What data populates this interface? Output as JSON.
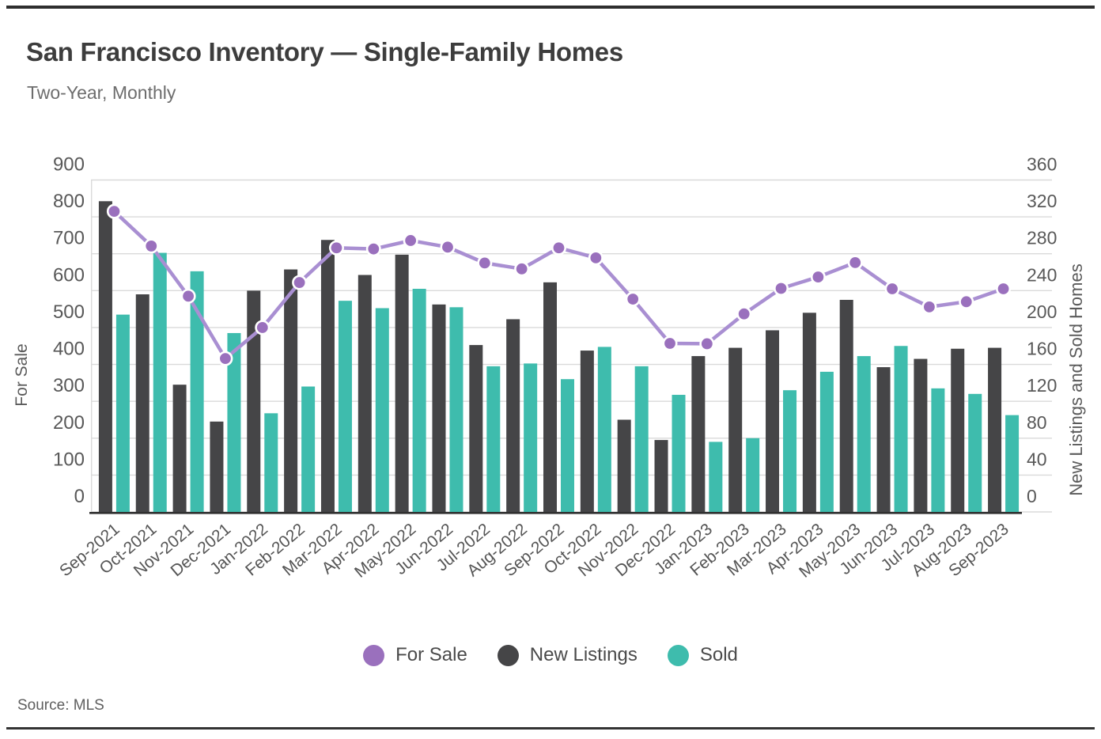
{
  "page": {
    "source": "Source: MLS"
  },
  "chart_data": {
    "type": "combo_bar_line",
    "title": "San Francisco Inventory — Single-Family Homes",
    "subtitle": "Two-Year, Monthly",
    "grid": true,
    "legend_position": "bottom",
    "categories": [
      "Sep-2021",
      "Oct-2021",
      "Nov-2021",
      "Dec-2021",
      "Jan-2022",
      "Feb-2022",
      "Mar-2022",
      "Apr-2022",
      "May-2022",
      "Jun-2022",
      "Jul-2022",
      "Aug-2022",
      "Sep-2022",
      "Oct-2022",
      "Nov-2022",
      "Dec-2022",
      "Jan-2023",
      "Feb-2023",
      "Mar-2023",
      "Apr-2023",
      "May-2023",
      "Jun-2023",
      "Jul-2023",
      "Aug-2023",
      "Sep-2023"
    ],
    "series": [
      {
        "name": "For Sale",
        "chart": "line",
        "axis": "left",
        "color": "#9a70bd",
        "line_color": "#a98fd2",
        "values": [
          815,
          721,
          585,
          416,
          500,
          622,
          716,
          713,
          736,
          718,
          675,
          659,
          716,
          689,
          577,
          457,
          456,
          537,
          606,
          637,
          676,
          605,
          556,
          570,
          605
        ]
      },
      {
        "name": "New Listings",
        "chart": "bar",
        "axis": "right",
        "color": "#454547",
        "values": [
          337,
          236,
          138,
          98,
          240,
          263,
          295,
          257,
          279,
          225,
          181,
          209,
          249,
          175,
          100,
          78,
          169,
          178,
          197,
          216,
          230,
          157,
          166,
          177,
          178
        ]
      },
      {
        "name": "Sold",
        "chart": "bar",
        "axis": "right",
        "color": "#3ebcad",
        "values": [
          214,
          281,
          261,
          194,
          107,
          136,
          229,
          221,
          242,
          222,
          158,
          161,
          144,
          179,
          158,
          127,
          76,
          80,
          132,
          152,
          169,
          180,
          134,
          128,
          105
        ]
      }
    ],
    "left_axis": {
      "label": "For Sale",
      "min": 0,
      "max": 900,
      "tick_step": 100
    },
    "right_axis": {
      "label": "New Listings and Sold Homes",
      "min": 0,
      "max": 360,
      "tick_step": 40
    }
  }
}
